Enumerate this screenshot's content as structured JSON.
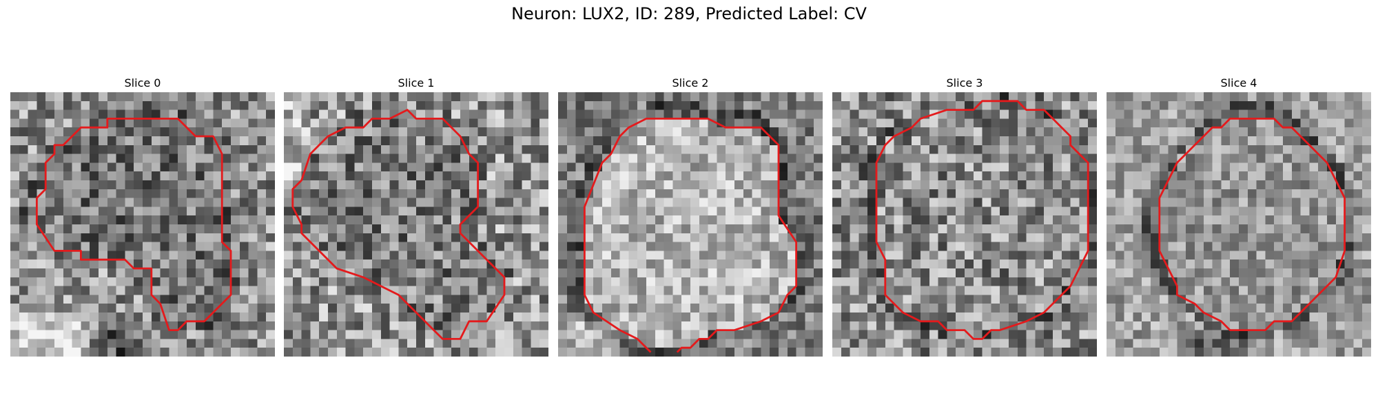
{
  "figure": {
    "title": "Neuron: LUX2, ID: 289, Predicted Label: CV",
    "contour_color": "#e41a1c",
    "colormap": "gray",
    "slices": [
      {
        "label": "Slice 0"
      },
      {
        "label": "Slice 1"
      },
      {
        "label": "Slice 2"
      },
      {
        "label": "Slice 3"
      },
      {
        "label": "Slice 4"
      }
    ]
  }
}
